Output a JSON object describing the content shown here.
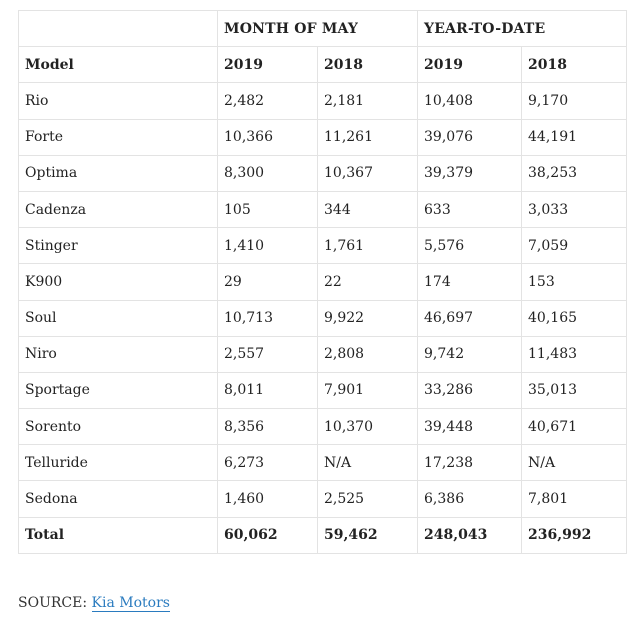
{
  "table": {
    "group_headers": [
      "",
      "MONTH OF MAY",
      "YEAR-TO-DATE"
    ],
    "columns": [
      "Model",
      "2019",
      "2018",
      "2019",
      "2018"
    ],
    "rows": [
      [
        "Rio",
        "2,482",
        "2,181",
        "10,408",
        "9,170"
      ],
      [
        "Forte",
        "10,366",
        "11,261",
        "39,076",
        "44,191"
      ],
      [
        "Optima",
        "8,300",
        "10,367",
        "39,379",
        "38,253"
      ],
      [
        "Cadenza",
        "105",
        "344",
        "633",
        "3,033"
      ],
      [
        "Stinger",
        "1,410",
        "1,761",
        "5,576",
        "7,059"
      ],
      [
        "K900",
        "29",
        "22",
        "174",
        "153"
      ],
      [
        "Soul",
        "10,713",
        "9,922",
        "46,697",
        "40,165"
      ],
      [
        "Niro",
        "2,557",
        "2,808",
        "9,742",
        "11,483"
      ],
      [
        "Sportage",
        "8,011",
        "7,901",
        "33,286",
        "35,013"
      ],
      [
        "Sorento",
        "8,356",
        "10,370",
        "39,448",
        "40,671"
      ],
      [
        "Telluride",
        "6,273",
        "N/A",
        "17,238",
        "N/A"
      ],
      [
        "Sedona",
        "1,460",
        "2,525",
        "6,386",
        "7,801"
      ]
    ],
    "total": [
      "Total",
      "60,062",
      "59,462",
      "248,043",
      "236,992"
    ]
  },
  "source": {
    "label": "SOURCE: ",
    "link_text": "Kia Motors"
  },
  "colors": {
    "border": "#e3e3e3",
    "text": "#222222",
    "link": "#2a7bbf"
  }
}
